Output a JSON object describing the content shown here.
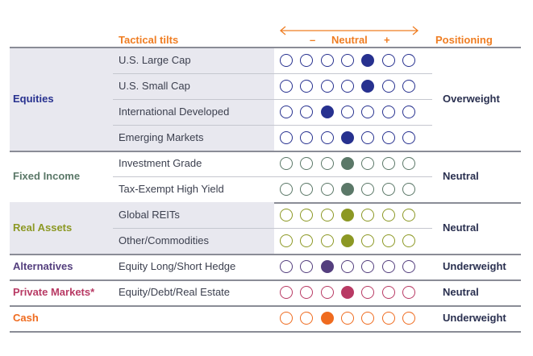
{
  "headers": {
    "tilts": "Tactical tilts",
    "minus": "–",
    "neutral": "Neutral",
    "plus": "+",
    "positioning": "Positioning"
  },
  "colors": {
    "accent": "#ef7d22",
    "equities": "#27318f",
    "fixed_income": "#5b7868",
    "real_assets": "#8c9824",
    "alternatives": "#543f7e",
    "private_markets": "#b83a64",
    "cash": "#ef6b1f",
    "label_text": "#3b3f4e",
    "positioning_text": "#2a3050",
    "highlight_band": "#e8e8ef"
  },
  "chart_data": {
    "type": "table",
    "scale_points": 7,
    "highlighted_categories": [
      "Equities",
      "Real Assets",
      "Private Markets"
    ],
    "categories": [
      {
        "name": "Equities",
        "color_key": "equities",
        "positioning": "Overweight",
        "rows": [
          {
            "label": "U.S. Large Cap",
            "tilt": 5
          },
          {
            "label": "U.S. Small Cap",
            "tilt": 5
          },
          {
            "label": "International Developed",
            "tilt": 3
          },
          {
            "label": "Emerging Markets",
            "tilt": 4
          }
        ]
      },
      {
        "name": "Fixed Income",
        "color_key": "fixed_income",
        "positioning": "Neutral",
        "rows": [
          {
            "label": "Investment Grade",
            "tilt": 4
          },
          {
            "label": "Tax-Exempt High Yield",
            "tilt": 4
          }
        ]
      },
      {
        "name": "Real Assets",
        "color_key": "real_assets",
        "positioning": "Neutral",
        "rows": [
          {
            "label": "Global REITs",
            "tilt": 4
          },
          {
            "label": "Other/Commodities",
            "tilt": 4
          }
        ]
      },
      {
        "name": "Alternatives",
        "color_key": "alternatives",
        "positioning": "Underweight",
        "rows": [
          {
            "label": "Equity Long/Short Hedge",
            "tilt": 3
          }
        ]
      },
      {
        "name": "Private Markets*",
        "color_key": "private_markets",
        "positioning": "Neutral",
        "rows": [
          {
            "label": "Equity/Debt/Real Estate",
            "tilt": 4
          }
        ]
      },
      {
        "name": "Cash",
        "color_key": "cash",
        "positioning": "Underweight",
        "rows": [
          {
            "label": "",
            "tilt": 3
          }
        ]
      }
    ]
  }
}
